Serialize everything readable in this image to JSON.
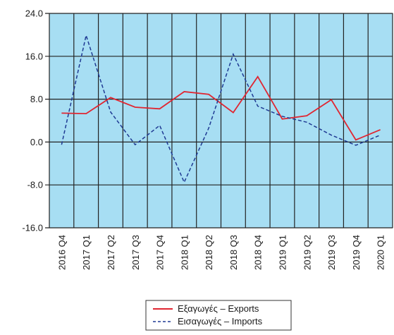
{
  "chart_data": {
    "type": "line",
    "categories": [
      "2016 Q4",
      "2017 Q1",
      "2017 Q2",
      "2017 Q3",
      "2017 Q4",
      "2018 Q1",
      "2018 Q2",
      "2018 Q3",
      "2018 Q4",
      "2019 Q1",
      "2019 Q2",
      "2019 Q3",
      "2019 Q4",
      "2020 Q1"
    ],
    "ylim": [
      -16,
      24
    ],
    "yticks": [
      24,
      16,
      8,
      0,
      -8,
      -16
    ],
    "ytick_labels": [
      "24.0",
      "16.0",
      "8.0",
      "0.0",
      "-8.0",
      "-16.0"
    ],
    "grid": true,
    "legend_position": "bottom-center",
    "background_color": "#a7def3",
    "series": [
      {
        "name": "Εξαγωγές – Exports",
        "color": "#e02631",
        "style": "solid",
        "values": [
          5.4,
          5.3,
          8.3,
          6.5,
          6.2,
          9.4,
          8.9,
          5.5,
          12.2,
          4.3,
          4.9,
          7.9,
          0.4,
          2.3
        ]
      },
      {
        "name": "Εισαγωγές – Imports",
        "color": "#1f3a93",
        "style": "dashed",
        "values": [
          -0.5,
          19.9,
          5.6,
          -0.5,
          3.1,
          -7.5,
          2.6,
          16.4,
          6.7,
          4.8,
          3.7,
          1.3,
          -0.6,
          1.3
        ]
      }
    ]
  }
}
